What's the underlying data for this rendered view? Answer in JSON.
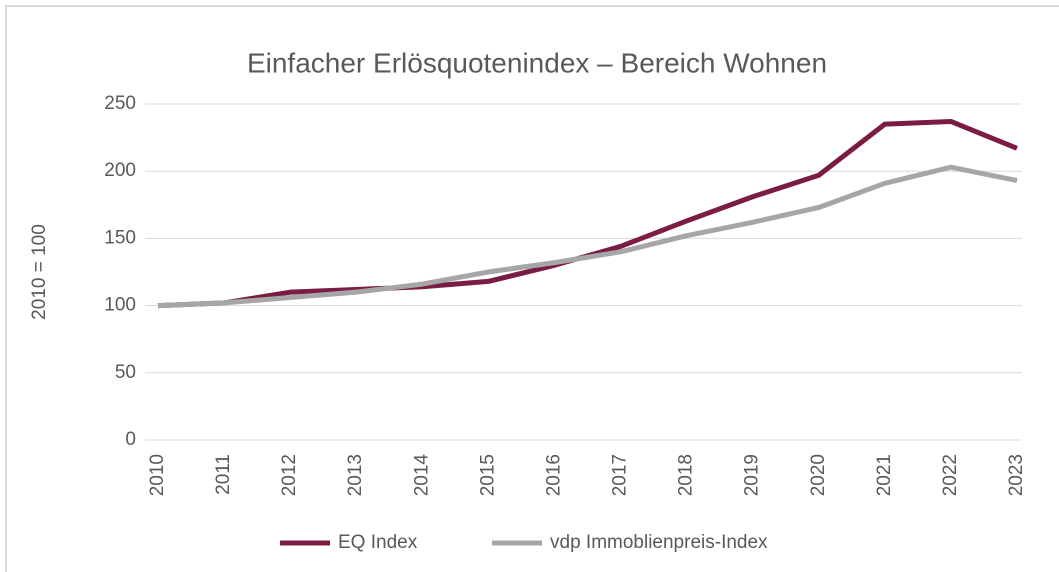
{
  "chart_data": {
    "type": "line",
    "title": "Einfacher Erlösquotenindex – Bereich Wohnen",
    "ylabel": "2010 = 100",
    "categories": [
      "2010",
      "2011",
      "2012",
      "2013",
      "2014",
      "2015",
      "2016",
      "2017",
      "2018",
      "2019",
      "2020",
      "2021",
      "2022",
      "2023"
    ],
    "series": [
      {
        "name": "EQ Index",
        "color": "#7b1c45",
        "values": [
          100,
          102,
          110,
          112,
          114,
          118,
          130,
          144,
          163,
          181,
          197,
          235,
          237,
          217
        ]
      },
      {
        "name": "vdp Immoblienpreis-Index",
        "color": "#a6a6a6",
        "values": [
          100,
          102,
          106,
          110,
          116,
          125,
          132,
          140,
          152,
          162,
          173,
          191,
          203,
          193
        ]
      }
    ],
    "ylim": [
      0,
      250
    ],
    "yticks": [
      0,
      50,
      100,
      150,
      200,
      250
    ],
    "grid": true,
    "legend": "bottom"
  }
}
